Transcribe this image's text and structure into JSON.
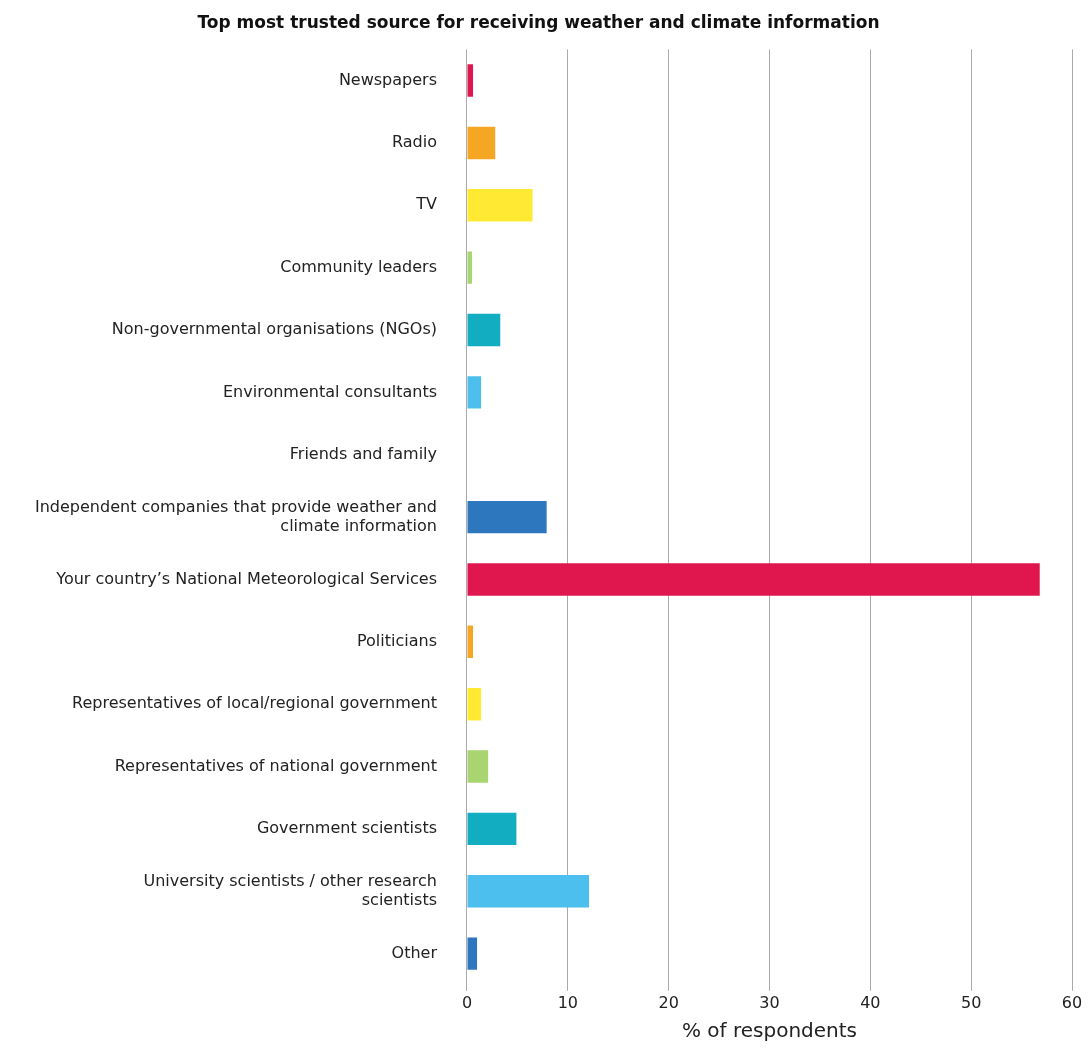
{
  "chart_data": {
    "type": "bar",
    "orientation": "horizontal",
    "title": "Top most trusted source for receiving weather and climate information",
    "xlabel": "% of respondents",
    "categories": [
      "Newspapers",
      "Radio",
      "TV",
      "Community leaders",
      "Non-governmental organisations (NGOs)",
      "Environmental consultants",
      "Friends and family",
      "Independent companies that provide weather and climate information",
      "Your country’s National Meteorological Services",
      "Politicians",
      "Representatives of local/regional government",
      "Representatives of national government",
      "Government scientists",
      "University scientists / other research scientists",
      "Other"
    ],
    "values": [
      0.6,
      2.8,
      6.5,
      0.5,
      3.3,
      1.4,
      0,
      7.9,
      56.8,
      0.6,
      1.4,
      2.1,
      4.9,
      12.1,
      1.0
    ],
    "colors": [
      "#e0174f",
      "#f5a623",
      "#ffe933",
      "#a8d56f",
      "#13adc1",
      "#4dbfee",
      "#2c77be",
      "#2c77be",
      "#e0174f",
      "#f5a623",
      "#ffe933",
      "#a8d56f",
      "#13adc1",
      "#4dbfee",
      "#2c77be"
    ],
    "xlim": [
      0,
      60
    ],
    "xticks": [
      0,
      10,
      20,
      30,
      40,
      50,
      60
    ],
    "grid": "x"
  }
}
